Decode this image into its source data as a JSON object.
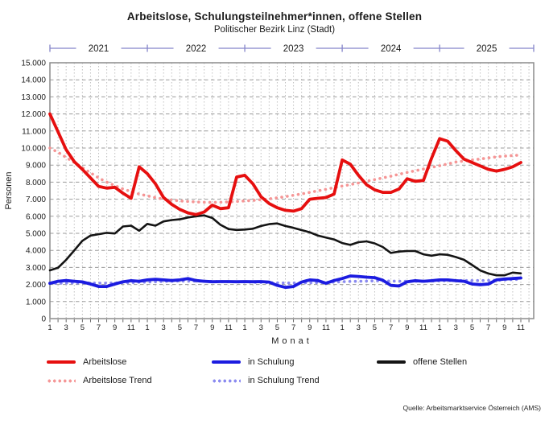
{
  "header": {
    "title": "Arbeitslose, Schulungsteilnehmer*innen, offene Stellen",
    "subtitle": "Politischer Bezirk Linz (Stadt)"
  },
  "footer": {
    "source": "Quelle: Arbeitsmarktservice Österreich (AMS)"
  },
  "colors": {
    "year_axis": "#8585ca",
    "grid_major": "#9b9b9b",
    "grid_minor": "#c0c0c0",
    "plot_border": "#8c8c8c",
    "text": "#1a1a1a"
  },
  "chart_data": {
    "type": "line",
    "title": "Arbeitslose, Schulungsteilnehmer*innen, offene Stellen",
    "subtitle": "Politischer Bezirk Linz (Stadt)",
    "xlabel": "Monat",
    "ylabel": "Personen",
    "ylim": [
      0,
      15000
    ],
    "y_tick_step": 1000,
    "y_tick_labels": [
      "0",
      "1.000",
      "2.000",
      "3.000",
      "4.000",
      "5.000",
      "6.000",
      "7.000",
      "8.000",
      "9.000",
      "10.000",
      "11.000",
      "12.000",
      "13.000",
      "14.000",
      "15.000"
    ],
    "x_start": "2021-01",
    "x_end": "2025-11",
    "n_points": 59,
    "x_month_tick_labels": [
      "1",
      "3",
      "5",
      "7",
      "9",
      "11"
    ],
    "top_axis_years": [
      "2021",
      "2022",
      "2023",
      "2024",
      "2025"
    ],
    "grid": true,
    "legend_position": "bottom",
    "source": "Quelle: Arbeitsmarktservice Österreich (AMS)",
    "series": [
      {
        "name": "Arbeitslose",
        "color": "#e60f0f",
        "style": "solid",
        "width": 3.8,
        "values": [
          12000,
          10950,
          9900,
          9200,
          8750,
          8250,
          7750,
          7650,
          7700,
          7350,
          7050,
          8900,
          8500,
          7900,
          7100,
          6700,
          6400,
          6200,
          6100,
          6250,
          6650,
          6450,
          6500,
          8300,
          8400,
          7900,
          7150,
          6750,
          6500,
          6350,
          6300,
          6450,
          7000,
          7050,
          7100,
          7300,
          9300,
          9050,
          8400,
          7850,
          7550,
          7400,
          7400,
          7600,
          8200,
          8050,
          8100,
          9400,
          10550,
          10400,
          9850,
          9350,
          9150,
          8950,
          8750,
          8650,
          8750,
          8900,
          9150
        ]
      },
      {
        "name": "Arbeitslose Trend",
        "color": "#f59696",
        "style": "dotted",
        "width": 3.6,
        "values": [
          10000,
          9750,
          9450,
          9150,
          8850,
          8550,
          8250,
          8000,
          7800,
          7600,
          7450,
          7300,
          7200,
          7100,
          7000,
          6950,
          6900,
          6870,
          6840,
          6820,
          6810,
          6820,
          6840,
          6870,
          6900,
          6930,
          6970,
          7020,
          7080,
          7150,
          7230,
          7310,
          7400,
          7490,
          7580,
          7680,
          7770,
          7860,
          7950,
          8050,
          8150,
          8250,
          8350,
          8460,
          8570,
          8670,
          8770,
          8870,
          8960,
          9070,
          9180,
          9240,
          9300,
          9360,
          9420,
          9480,
          9530,
          9560,
          9590
        ]
      },
      {
        "name": "in Schulung",
        "color": "#1b1be0",
        "style": "solid",
        "width": 3.8,
        "values": [
          2070,
          2190,
          2230,
          2190,
          2150,
          2030,
          1880,
          1880,
          2030,
          2160,
          2220,
          2190,
          2270,
          2300,
          2270,
          2230,
          2270,
          2350,
          2230,
          2190,
          2160,
          2170,
          2170,
          2160,
          2170,
          2160,
          2170,
          2140,
          1950,
          1830,
          1880,
          2140,
          2270,
          2230,
          2070,
          2230,
          2350,
          2500,
          2470,
          2430,
          2400,
          2250,
          1950,
          1910,
          2160,
          2220,
          2190,
          2220,
          2270,
          2270,
          2220,
          2190,
          2030,
          1990,
          2030,
          2270,
          2320,
          2350,
          2380
        ]
      },
      {
        "name": "in Schulung Trend",
        "color": "#8a8af0",
        "style": "dotted",
        "width": 3.6,
        "values": [
          2060,
          2070,
          2080,
          2090,
          2090,
          2090,
          2080,
          2080,
          2090,
          2100,
          2110,
          2130,
          2140,
          2160,
          2180,
          2190,
          2200,
          2200,
          2200,
          2190,
          2180,
          2170,
          2160,
          2150,
          2140,
          2130,
          2120,
          2110,
          2100,
          2090,
          2090,
          2090,
          2100,
          2110,
          2120,
          2140,
          2160,
          2180,
          2190,
          2200,
          2210,
          2210,
          2200,
          2190,
          2190,
          2190,
          2190,
          2200,
          2210,
          2220,
          2230,
          2230,
          2230,
          2230,
          2240,
          2250,
          2270,
          2290,
          2310
        ]
      },
      {
        "name": "offene Stellen",
        "color": "#141414",
        "style": "solid",
        "width": 2.6,
        "values": [
          2830,
          2980,
          3450,
          4000,
          4560,
          4870,
          4950,
          5030,
          4990,
          5400,
          5450,
          5150,
          5550,
          5450,
          5700,
          5780,
          5820,
          5930,
          6000,
          6050,
          5900,
          5500,
          5250,
          5200,
          5220,
          5270,
          5430,
          5540,
          5580,
          5430,
          5320,
          5190,
          5060,
          4870,
          4750,
          4640,
          4430,
          4320,
          4480,
          4530,
          4410,
          4200,
          3850,
          3930,
          3960,
          3960,
          3770,
          3690,
          3770,
          3740,
          3610,
          3450,
          3140,
          2820,
          2640,
          2540,
          2540,
          2700,
          2650
        ]
      }
    ]
  }
}
